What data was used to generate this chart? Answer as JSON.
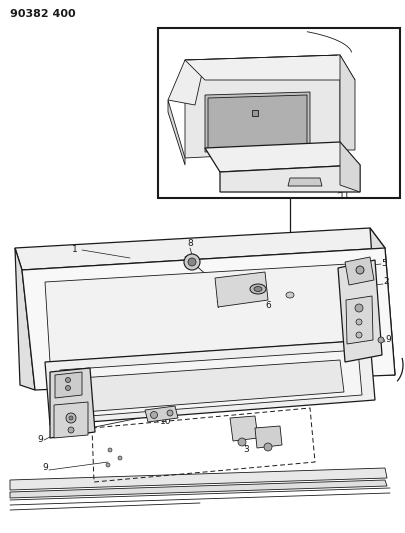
{
  "title": "90382 400",
  "bg_color": "#ffffff",
  "line_color": "#1a1a1a",
  "fig_width": 4.05,
  "fig_height": 5.33,
  "dpi": 100
}
